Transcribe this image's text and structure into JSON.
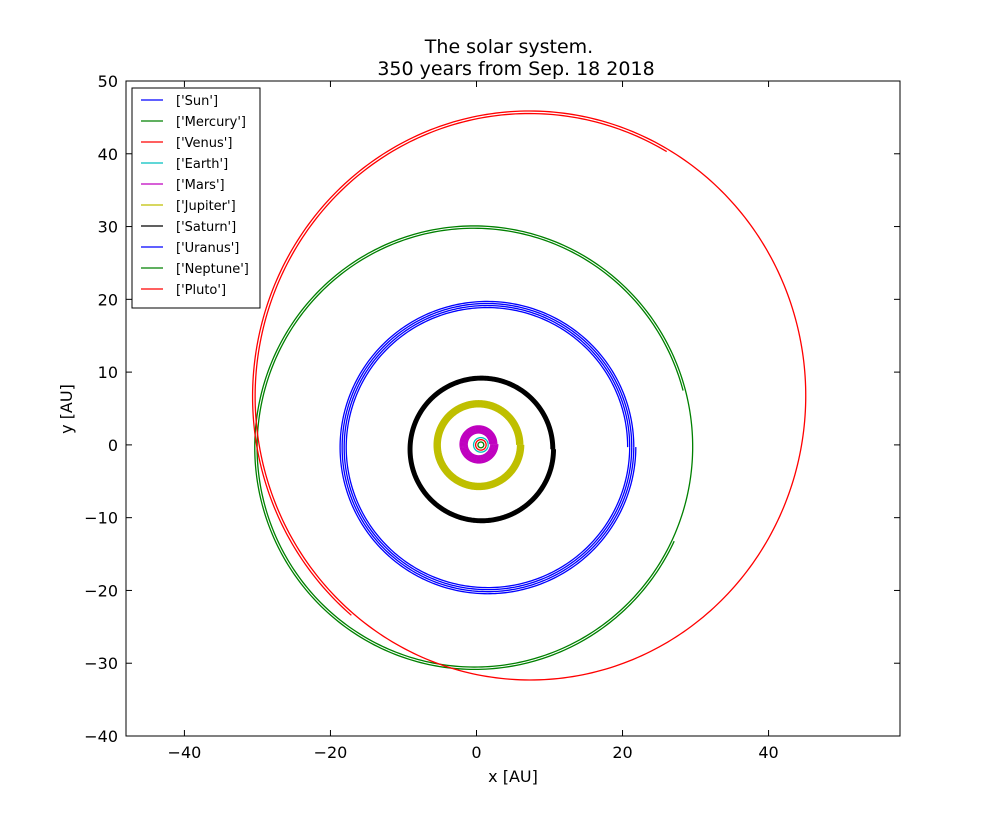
{
  "chart_data": {
    "type": "line",
    "title": "The solar system.",
    "subtitle": "350 years from Sep. 18 2018",
    "xlabel": "x [AU]",
    "ylabel": "y [AU]",
    "xlim": [
      -48,
      58
    ],
    "ylim": [
      -40,
      50
    ],
    "xticks": [
      -40,
      -20,
      0,
      20,
      40
    ],
    "yticks": [
      -40,
      -30,
      -20,
      -10,
      0,
      10,
      20,
      30,
      40,
      50
    ],
    "xtick_labels": [
      "−40",
      "−20",
      "0",
      "20",
      "40"
    ],
    "ytick_labels": [
      "−40",
      "−30",
      "−20",
      "−10",
      "0",
      "10",
      "20",
      "30",
      "40",
      "50"
    ],
    "grid": false,
    "legend_position": "top-left",
    "series": [
      {
        "name": "['Sun']",
        "color": "#0000ff",
        "orbit": {
          "cx": 0.0,
          "cy": 0.0,
          "rx": 0.0,
          "ry": 0.0,
          "start_deg": 0,
          "sweep_deg": 0,
          "turns": 1,
          "spacing": 0.0
        }
      },
      {
        "name": "['Mercury']",
        "color": "#008000",
        "orbit": {
          "cx": 0.6,
          "cy": 0.0,
          "rx": 0.4,
          "ry": 0.4,
          "start_deg": 0,
          "sweep_deg": 360,
          "turns": 1,
          "spacing": 0.0
        }
      },
      {
        "name": "['Venus']",
        "color": "#ff0000",
        "orbit": {
          "cx": 0.6,
          "cy": 0.0,
          "rx": 0.72,
          "ry": 0.72,
          "start_deg": 0,
          "sweep_deg": 360,
          "turns": 1,
          "spacing": 0.0
        }
      },
      {
        "name": "['Earth']",
        "color": "#00bfbf",
        "orbit": {
          "cx": 0.6,
          "cy": 0.0,
          "rx": 1.0,
          "ry": 1.0,
          "start_deg": 0,
          "sweep_deg": 360,
          "turns": 1,
          "spacing": 0.0
        }
      },
      {
        "name": "['Mars']",
        "color": "#bf00bf",
        "orbit": {
          "cx": 0.3,
          "cy": 0.1,
          "rx": 1.5,
          "ry": 1.5,
          "start_deg": 0,
          "sweep_deg": 360,
          "turns": 8,
          "spacing": 0.14
        }
      },
      {
        "name": "['Jupiter']",
        "color": "#bfbf00",
        "orbit": {
          "cx": 0.3,
          "cy": 0.0,
          "rx": 5.2,
          "ry": 5.2,
          "start_deg": 0,
          "sweep_deg": 360,
          "turns": 8,
          "spacing": 0.12
        }
      },
      {
        "name": "['Saturn']",
        "color": "#000000",
        "orbit": {
          "cx": 0.7,
          "cy": -0.6,
          "rx": 9.5,
          "ry": 9.5,
          "start_deg": 0,
          "sweep_deg": 360,
          "turns": 6,
          "spacing": 0.1
        }
      },
      {
        "name": "['Uranus']",
        "color": "#0000ff",
        "orbit": {
          "cx": 1.5,
          "cy": -0.3,
          "rx": 19.2,
          "ry": 19.1,
          "start_deg": 0,
          "sweep_deg": 360,
          "turns": 4,
          "spacing": 0.28
        }
      },
      {
        "name": "['Neptune']",
        "color": "#008000",
        "orbit": {
          "cx": -0.3,
          "cy": -0.3,
          "rx": 29.6,
          "ry": 30.0,
          "start_deg": 15,
          "sweep_deg": 680,
          "turns": 1,
          "spacing": 0.32
        }
      },
      {
        "name": "['Pluto']",
        "color": "#ff0000",
        "orbit": {
          "cx": 7.3,
          "cy": 6.7,
          "rx": 37.5,
          "ry": 38.8,
          "start_deg": 60,
          "sweep_deg": 530,
          "turns": 1,
          "spacing": 0.35
        }
      }
    ]
  }
}
